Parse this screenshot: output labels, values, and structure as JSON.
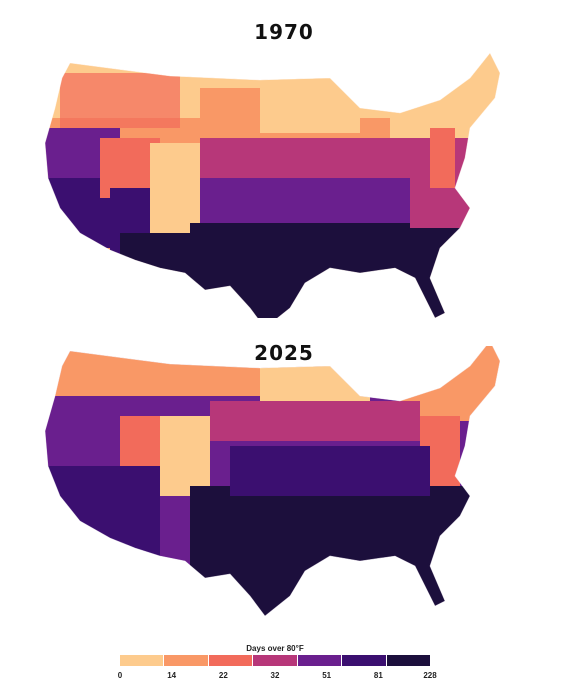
{
  "panels": [
    {
      "year": "1970"
    },
    {
      "year": "2025"
    }
  ],
  "legend": {
    "title": "Days over 80°F",
    "ticks": [
      "0",
      "14",
      "22",
      "32",
      "51",
      "81",
      "228"
    ],
    "colors": [
      "#fdcb8d",
      "#f99866",
      "#f26b5b",
      "#b73779",
      "#6a1f8e",
      "#3b0f70",
      "#1c0f3c"
    ]
  },
  "map_note": {
    "1970": "Cooler north (0–22 days) with warm purple band across central states; darkest (81–228) confined to deep South, Texas and desert Southwest.",
    "2025": "Dark purple (81–228 days) expands north through the central states and West; orange/peach zones shrink toward the northern border and mountains."
  }
}
